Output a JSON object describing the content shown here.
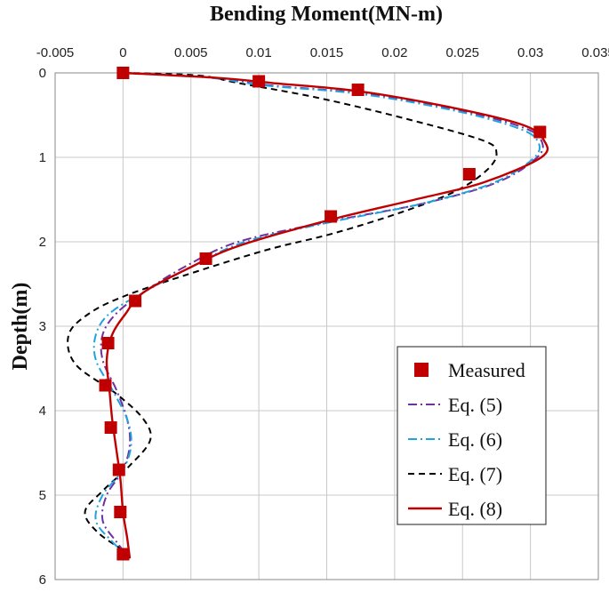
{
  "chart_data": {
    "type": "line",
    "title": "Bending Moment(MN-m)",
    "xlabel": "Bending Moment(MN-m)",
    "ylabel": "Depth(m)",
    "xlim": [
      -0.005,
      0.035
    ],
    "ylim": [
      6,
      0
    ],
    "x_ticks": [
      "-0.005",
      "0",
      "0.005",
      "0.01",
      "0.015",
      "0.02",
      "0.025",
      "0.03",
      "0.035"
    ],
    "y_ticks": [
      "0",
      "1",
      "2",
      "3",
      "4",
      "5",
      "6"
    ],
    "x_axis_position": "top",
    "grid": true,
    "legend_position": "bottom-right",
    "series": [
      {
        "name": "Measured",
        "style": "markers",
        "color": "#c00000",
        "points": [
          [
            0,
            0
          ],
          [
            0.01,
            0.1
          ],
          [
            0.0173,
            0.2
          ],
          [
            0.0307,
            0.7
          ],
          [
            0.0255,
            1.2
          ],
          [
            0.0153,
            1.7
          ],
          [
            0.0061,
            2.2
          ],
          [
            0.0009,
            2.7
          ],
          [
            -0.0011,
            3.2
          ],
          [
            -0.0013,
            3.7
          ],
          [
            -0.0009,
            4.2
          ],
          [
            -0.0003,
            4.7
          ],
          [
            -0.0002,
            5.2
          ],
          [
            0,
            5.7
          ]
        ]
      },
      {
        "name": "Eq. (5)",
        "style": "dash-dot",
        "color": "#7030a0",
        "points": [
          [
            0,
            0
          ],
          [
            0.006,
            0.05
          ],
          [
            0.011,
            0.15
          ],
          [
            0.018,
            0.25
          ],
          [
            0.025,
            0.45
          ],
          [
            0.0295,
            0.65
          ],
          [
            0.0308,
            0.8
          ],
          [
            0.0305,
            1.0
          ],
          [
            0.0275,
            1.3
          ],
          [
            0.022,
            1.55
          ],
          [
            0.0155,
            1.75
          ],
          [
            0.0085,
            2.0
          ],
          [
            0.0045,
            2.3
          ],
          [
            0.0015,
            2.6
          ],
          [
            -0.0005,
            2.85
          ],
          [
            -0.0015,
            3.1
          ],
          [
            -0.0015,
            3.4
          ],
          [
            -0.0005,
            3.75
          ],
          [
            0.0003,
            4.1
          ],
          [
            0.0005,
            4.4
          ],
          [
            0,
            4.7
          ],
          [
            -0.0012,
            5.0
          ],
          [
            -0.0015,
            5.3
          ],
          [
            -0.0005,
            5.55
          ],
          [
            0.0005,
            5.75
          ]
        ]
      },
      {
        "name": "Eq. (6)",
        "style": "dash-dot",
        "color": "#1fa3e0",
        "points": [
          [
            0,
            0
          ],
          [
            0.006,
            0.05
          ],
          [
            0.0105,
            0.15
          ],
          [
            0.0175,
            0.25
          ],
          [
            0.0245,
            0.45
          ],
          [
            0.029,
            0.65
          ],
          [
            0.0305,
            0.8
          ],
          [
            0.0303,
            1.0
          ],
          [
            0.0273,
            1.3
          ],
          [
            0.022,
            1.55
          ],
          [
            0.0158,
            1.75
          ],
          [
            0.009,
            2.0
          ],
          [
            0.005,
            2.3
          ],
          [
            0.0015,
            2.6
          ],
          [
            -0.001,
            2.85
          ],
          [
            -0.002,
            3.1
          ],
          [
            -0.002,
            3.4
          ],
          [
            -0.0008,
            3.75
          ],
          [
            0.0003,
            4.1
          ],
          [
            0.0006,
            4.4
          ],
          [
            0,
            4.7
          ],
          [
            -0.0015,
            5.0
          ],
          [
            -0.002,
            5.3
          ],
          [
            -0.0008,
            5.55
          ],
          [
            0.0005,
            5.75
          ]
        ]
      },
      {
        "name": "Eq. (7)",
        "style": "dashed",
        "color": "#000000",
        "points": [
          [
            0,
            0
          ],
          [
            0.0055,
            0.03
          ],
          [
            0.0085,
            0.12
          ],
          [
            0.0145,
            0.3
          ],
          [
            0.021,
            0.55
          ],
          [
            0.0265,
            0.8
          ],
          [
            0.0275,
            0.95
          ],
          [
            0.0268,
            1.15
          ],
          [
            0.0245,
            1.4
          ],
          [
            0.0205,
            1.65
          ],
          [
            0.0155,
            1.9
          ],
          [
            0.0105,
            2.1
          ],
          [
            0.0045,
            2.4
          ],
          [
            0,
            2.65
          ],
          [
            -0.0025,
            2.85
          ],
          [
            -0.004,
            3.1
          ],
          [
            -0.0035,
            3.45
          ],
          [
            -0.0005,
            3.8
          ],
          [
            0.0015,
            4.1
          ],
          [
            0.002,
            4.35
          ],
          [
            0.0005,
            4.65
          ],
          [
            -0.0015,
            4.95
          ],
          [
            -0.0028,
            5.2
          ],
          [
            -0.0018,
            5.45
          ],
          [
            0.0005,
            5.7
          ]
        ]
      },
      {
        "name": "Eq. (8)",
        "style": "solid",
        "color": "#c00000",
        "points": [
          [
            0,
            0
          ],
          [
            0.007,
            0.06
          ],
          [
            0.011,
            0.12
          ],
          [
            0.0175,
            0.22
          ],
          [
            0.0245,
            0.42
          ],
          [
            0.0295,
            0.62
          ],
          [
            0.031,
            0.8
          ],
          [
            0.0308,
            1.0
          ],
          [
            0.0265,
            1.3
          ],
          [
            0.0215,
            1.5
          ],
          [
            0.015,
            1.75
          ],
          [
            0.0085,
            2.05
          ],
          [
            0.005,
            2.3
          ],
          [
            0.0015,
            2.6
          ],
          [
            0.0002,
            2.85
          ],
          [
            -0.0008,
            3.1
          ],
          [
            -0.0012,
            3.4
          ],
          [
            -0.001,
            3.75
          ],
          [
            -0.0008,
            4.1
          ],
          [
            -0.0005,
            4.45
          ],
          [
            -0.0002,
            4.8
          ],
          [
            0,
            5.2
          ],
          [
            0.0003,
            5.5
          ],
          [
            0.0005,
            5.75
          ]
        ]
      }
    ]
  }
}
